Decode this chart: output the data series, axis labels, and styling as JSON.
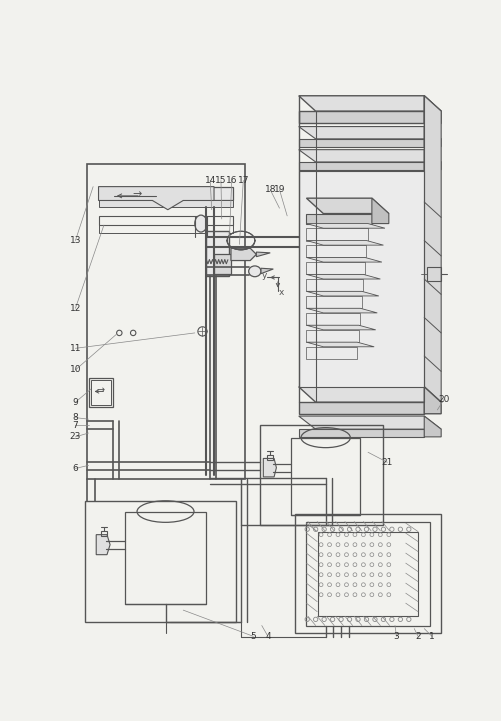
{
  "bg_color": "#f2f2ee",
  "lc": "#888888",
  "dc": "#555555",
  "thickc": "#666666"
}
